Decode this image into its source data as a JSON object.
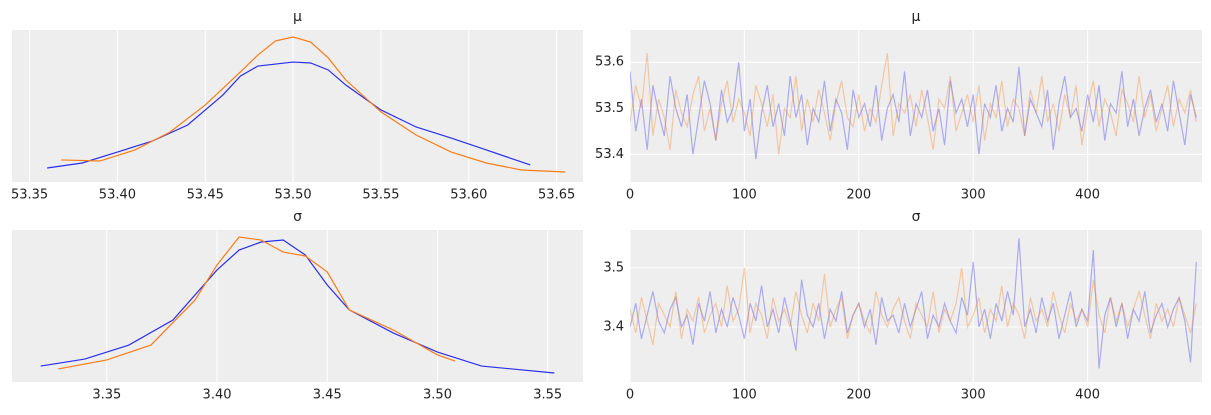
{
  "chart_data": [
    {
      "type": "kde",
      "title": "μ",
      "xlim": [
        53.34,
        53.665
      ],
      "ylim": [
        0,
        10
      ],
      "grid": "x",
      "xticks": [
        53.35,
        {
          "value": 53.4,
          "label": "53.40"
        },
        53.45,
        {
          "value": 53.5,
          "label": "53.50"
        },
        53.55,
        {
          "value": 53.6,
          "label": "53.60"
        },
        53.65
      ],
      "series": [
        {
          "color": "#2a2eec",
          "x": [
            53.36,
            53.38,
            53.4,
            53.42,
            53.44,
            53.46,
            53.47,
            53.48,
            53.5,
            53.51,
            53.52,
            53.53,
            53.55,
            53.57,
            53.59,
            53.61,
            53.635
          ],
          "values": [
            0.92,
            1.25,
            1.97,
            2.7,
            3.75,
            5.72,
            6.97,
            7.63,
            7.89,
            7.83,
            7.37,
            6.38,
            4.74,
            3.62,
            2.89,
            2.11,
            1.12
          ]
        },
        {
          "color": "#fa7c17",
          "x": [
            53.368,
            53.39,
            53.41,
            53.43,
            53.45,
            53.47,
            53.48,
            53.49,
            53.5,
            53.51,
            53.52,
            53.53,
            53.55,
            53.57,
            53.59,
            53.61,
            53.63,
            53.655
          ],
          "values": [
            1.45,
            1.38,
            2.11,
            3.29,
            5.07,
            7.24,
            8.36,
            9.28,
            9.54,
            9.21,
            8.16,
            6.71,
            4.61,
            3.09,
            1.97,
            1.25,
            0.79,
            0.66
          ]
        }
      ]
    },
    {
      "type": "trace",
      "title": "μ",
      "xlim": [
        0,
        500
      ],
      "ylim": [
        53.34,
        53.67
      ],
      "grid": "xy",
      "line_alpha": 0.35,
      "xticks": [
        0,
        100,
        200,
        300,
        400
      ],
      "yticks": [
        53.4,
        53.5,
        53.6
      ],
      "x": [
        0,
        5,
        10,
        15,
        20,
        25,
        30,
        35,
        40,
        45,
        50,
        55,
        60,
        65,
        70,
        75,
        80,
        85,
        90,
        95,
        100,
        105,
        110,
        115,
        120,
        125,
        130,
        135,
        140,
        145,
        150,
        155,
        160,
        165,
        170,
        175,
        180,
        185,
        190,
        195,
        200,
        205,
        210,
        215,
        220,
        225,
        230,
        235,
        240,
        245,
        250,
        255,
        260,
        265,
        270,
        275,
        280,
        285,
        290,
        295,
        300,
        305,
        310,
        315,
        320,
        325,
        330,
        335,
        340,
        345,
        350,
        355,
        360,
        365,
        370,
        375,
        380,
        385,
        390,
        395,
        400,
        405,
        410,
        415,
        420,
        425,
        430,
        435,
        440,
        445,
        450,
        455,
        460,
        465,
        470,
        475,
        480,
        485,
        490,
        495
      ],
      "series": [
        {
          "color": "#2a2eec",
          "values": [
            53.58,
            53.45,
            53.52,
            53.41,
            53.55,
            53.49,
            53.44,
            53.57,
            53.5,
            53.46,
            53.53,
            53.4,
            53.48,
            53.56,
            53.51,
            53.43,
            53.54,
            53.47,
            53.5,
            53.6,
            53.45,
            53.52,
            53.39,
            53.49,
            53.55,
            53.46,
            53.51,
            53.44,
            53.57,
            53.48,
            53.53,
            53.42,
            53.5,
            53.47,
            53.56,
            53.45,
            53.52,
            53.49,
            53.41,
            53.54,
            53.48,
            53.51,
            53.46,
            53.55,
            53.43,
            53.5,
            53.53,
            53.47,
            53.58,
            53.44,
            53.51,
            53.48,
            53.54,
            53.45,
            53.5,
            53.42,
            53.56,
            53.49,
            53.52,
            53.46,
            53.53,
            53.4,
            53.51,
            53.48,
            53.55,
            53.45,
            53.5,
            53.47,
            53.59,
            53.44,
            53.52,
            53.49,
            53.46,
            53.54,
            53.41,
            53.51,
            53.57,
            53.48,
            53.5,
            53.45,
            53.53,
            53.47,
            53.55,
            53.43,
            53.51,
            53.49,
            53.58,
            53.46,
            53.52,
            53.44,
            53.5,
            53.54,
            53.47,
            53.51,
            53.45,
            53.56,
            53.49,
            53.42,
            53.53,
            53.48
          ]
        },
        {
          "color": "#fa7c17",
          "values": [
            53.47,
            53.55,
            53.5,
            53.62,
            53.44,
            53.52,
            53.48,
            53.41,
            53.54,
            53.49,
            53.46,
            53.53,
            53.57,
            53.45,
            53.5,
            53.43,
            53.51,
            53.56,
            53.47,
            53.52,
            53.49,
            53.44,
            53.55,
            53.51,
            53.46,
            53.53,
            53.4,
            53.5,
            53.48,
            53.57,
            53.45,
            53.52,
            53.47,
            53.54,
            53.49,
            53.43,
            53.51,
            53.56,
            53.48,
            53.46,
            53.53,
            53.45,
            53.5,
            53.47,
            53.55,
            53.62,
            53.44,
            53.51,
            53.49,
            53.53,
            53.46,
            53.54,
            53.48,
            53.41,
            53.52,
            53.5,
            53.57,
            53.45,
            53.49,
            53.53,
            53.47,
            53.55,
            53.43,
            53.51,
            53.48,
            53.56,
            53.46,
            53.52,
            53.5,
            53.44,
            53.54,
            53.49,
            53.57,
            53.47,
            53.51,
            53.45,
            53.53,
            53.48,
            53.55,
            53.42,
            53.5,
            53.56,
            53.46,
            53.52,
            53.49,
            53.44,
            53.54,
            53.51,
            53.47,
            53.57,
            53.48,
            53.53,
            53.45,
            53.5,
            53.55,
            53.46,
            53.52,
            53.49,
            53.54,
            53.47
          ]
        }
      ]
    },
    {
      "type": "kde",
      "title": "σ",
      "xlim": [
        3.307,
        3.566
      ],
      "ylim": [
        0,
        10
      ],
      "grid": "x",
      "xticks": [
        3.35,
        {
          "value": 3.4,
          "label": "3.40"
        },
        3.45,
        {
          "value": 3.5,
          "label": "3.50"
        },
        3.55
      ],
      "series": [
        {
          "color": "#2a2eec",
          "x": [
            3.32,
            3.34,
            3.36,
            3.38,
            3.4,
            3.41,
            3.42,
            3.43,
            3.44,
            3.45,
            3.46,
            3.48,
            3.5,
            3.52,
            3.553
          ],
          "values": [
            1.05,
            1.51,
            2.43,
            4.08,
            7.37,
            8.68,
            9.21,
            9.34,
            8.36,
            6.38,
            4.74,
            3.22,
            1.97,
            1.05,
            0.59
          ]
        },
        {
          "color": "#fa7c17",
          "x": [
            3.328,
            3.35,
            3.37,
            3.39,
            3.4,
            3.41,
            3.42,
            3.43,
            3.44,
            3.45,
            3.46,
            3.48,
            3.5,
            3.508
          ],
          "values": [
            0.86,
            1.45,
            2.43,
            5.39,
            7.7,
            9.54,
            9.34,
            8.55,
            8.29,
            7.24,
            4.74,
            3.42,
            1.78,
            1.38
          ]
        }
      ]
    },
    {
      "type": "trace",
      "title": "σ",
      "xlim": [
        0,
        500
      ],
      "ylim": [
        3.307,
        3.564
      ],
      "grid": "xy",
      "line_alpha": 0.35,
      "xticks": [
        0,
        100,
        200,
        300,
        400
      ],
      "yticks": [
        3.4,
        3.5
      ],
      "x": [
        0,
        5,
        10,
        15,
        20,
        25,
        30,
        35,
        40,
        45,
        50,
        55,
        60,
        65,
        70,
        75,
        80,
        85,
        90,
        95,
        100,
        105,
        110,
        115,
        120,
        125,
        130,
        135,
        140,
        145,
        150,
        155,
        160,
        165,
        170,
        175,
        180,
        185,
        190,
        195,
        200,
        205,
        210,
        215,
        220,
        225,
        230,
        235,
        240,
        245,
        250,
        255,
        260,
        265,
        270,
        275,
        280,
        285,
        290,
        295,
        300,
        305,
        310,
        315,
        320,
        325,
        330,
        335,
        340,
        345,
        350,
        355,
        360,
        365,
        370,
        375,
        380,
        385,
        390,
        395,
        400,
        405,
        410,
        415,
        420,
        425,
        430,
        435,
        440,
        445,
        450,
        455,
        460,
        465,
        470,
        475,
        480,
        485,
        490,
        495
      ],
      "series": [
        {
          "color": "#2a2eec",
          "values": [
            3.4,
            3.44,
            3.38,
            3.42,
            3.46,
            3.41,
            3.39,
            3.43,
            3.45,
            3.4,
            3.42,
            3.37,
            3.44,
            3.41,
            3.46,
            3.39,
            3.43,
            3.4,
            3.45,
            3.42,
            3.38,
            3.44,
            3.41,
            3.47,
            3.4,
            3.43,
            3.39,
            3.45,
            3.41,
            3.36,
            3.48,
            3.42,
            3.4,
            3.44,
            3.38,
            3.43,
            3.41,
            3.46,
            3.39,
            3.42,
            3.44,
            3.4,
            3.43,
            3.37,
            3.45,
            3.41,
            3.42,
            3.39,
            3.44,
            3.4,
            3.43,
            3.46,
            3.38,
            3.42,
            3.4,
            3.44,
            3.41,
            3.39,
            3.45,
            3.42,
            3.51,
            3.4,
            3.43,
            3.38,
            3.44,
            3.41,
            3.46,
            3.42,
            3.55,
            3.4,
            3.43,
            3.39,
            3.45,
            3.41,
            3.44,
            3.38,
            3.42,
            3.46,
            3.4,
            3.43,
            3.41,
            3.53,
            3.33,
            3.42,
            3.45,
            3.4,
            3.44,
            3.38,
            3.43,
            3.41,
            3.46,
            3.39,
            3.42,
            3.44,
            3.4,
            3.43,
            3.45,
            3.41,
            3.34,
            3.51
          ]
        },
        {
          "color": "#fa7c17",
          "values": [
            3.43,
            3.39,
            3.45,
            3.41,
            3.37,
            3.44,
            3.42,
            3.4,
            3.46,
            3.38,
            3.43,
            3.41,
            3.45,
            3.39,
            3.42,
            3.44,
            3.4,
            3.47,
            3.41,
            3.43,
            3.5,
            3.39,
            3.44,
            3.42,
            3.38,
            3.45,
            3.41,
            3.43,
            3.4,
            3.46,
            3.42,
            3.39,
            3.44,
            3.41,
            3.49,
            3.4,
            3.43,
            3.45,
            3.38,
            3.42,
            3.44,
            3.41,
            3.39,
            3.46,
            3.42,
            3.4,
            3.43,
            3.45,
            3.41,
            3.38,
            3.44,
            3.42,
            3.4,
            3.46,
            3.39,
            3.43,
            3.41,
            3.44,
            3.5,
            3.4,
            3.42,
            3.45,
            3.39,
            3.43,
            3.41,
            3.47,
            3.4,
            3.44,
            3.42,
            3.38,
            3.45,
            3.41,
            3.43,
            3.4,
            3.46,
            3.42,
            3.39,
            3.44,
            3.41,
            3.43,
            3.4,
            3.48,
            3.42,
            3.39,
            3.45,
            3.41,
            3.44,
            3.4,
            3.43,
            3.46,
            3.42,
            3.38,
            3.44,
            3.41,
            3.43,
            3.4,
            3.45,
            3.42,
            3.39,
            3.44
          ]
        }
      ]
    }
  ]
}
